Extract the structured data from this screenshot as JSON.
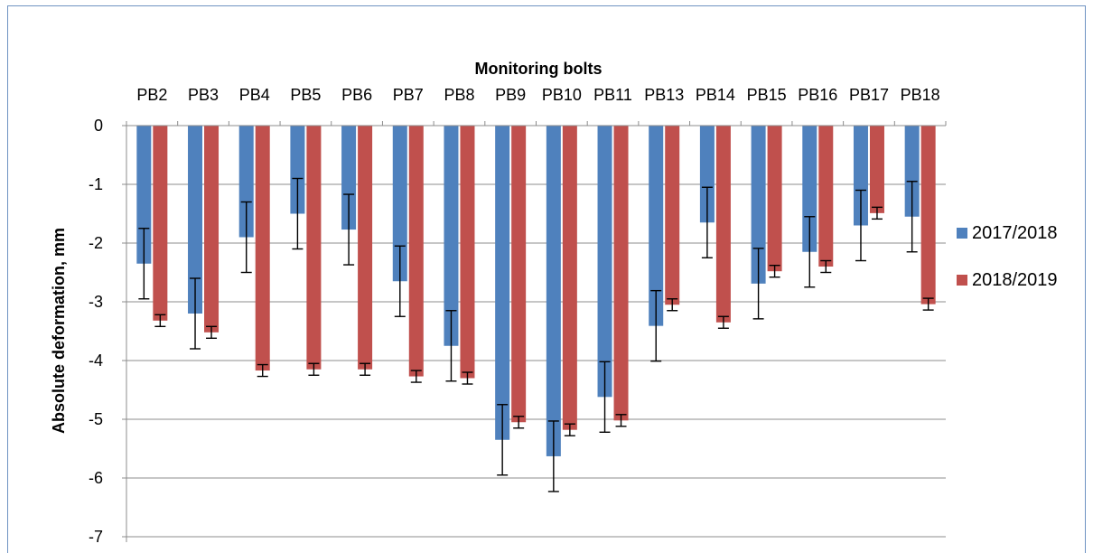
{
  "chart_data": {
    "type": "bar",
    "title": "Monitoring bolts",
    "ylabel": "Absolute deformation, mm",
    "xlabel": "",
    "ylim": [
      -7,
      0
    ],
    "yticks": [
      0,
      -1,
      -2,
      -3,
      -4,
      -5,
      -6,
      -7
    ],
    "x_axis_position": "top",
    "grid": true,
    "legend_position": "right",
    "categories": [
      "PB2",
      "PB3",
      "PB4",
      "PB5",
      "PB6",
      "PB7",
      "PB8",
      "PB9",
      "PB10",
      "PB11",
      "PB13",
      "PB14",
      "PB15",
      "PB16",
      "PB17",
      "PB18"
    ],
    "series": [
      {
        "name": "2017/2018",
        "color": "#4f81bd",
        "values": [
          -2.35,
          -3.2,
          -1.9,
          -1.5,
          -1.77,
          -2.65,
          -3.75,
          -5.35,
          -5.63,
          -4.62,
          -3.41,
          -1.65,
          -2.69,
          -2.15,
          -1.7,
          -1.55
        ],
        "error": [
          0.6,
          0.6,
          0.6,
          0.6,
          0.6,
          0.6,
          0.6,
          0.6,
          0.6,
          0.6,
          0.6,
          0.6,
          0.6,
          0.6,
          0.6,
          0.6
        ]
      },
      {
        "name": "2018/2019",
        "color": "#c0504d",
        "values": [
          -3.32,
          -3.52,
          -4.17,
          -4.15,
          -4.15,
          -4.27,
          -4.3,
          -5.05,
          -5.18,
          -5.02,
          -3.05,
          -3.35,
          -2.48,
          -2.4,
          -1.49,
          -3.04
        ],
        "error": [
          0.1,
          0.1,
          0.1,
          0.1,
          0.1,
          0.1,
          0.1,
          0.1,
          0.1,
          0.1,
          0.1,
          0.1,
          0.1,
          0.1,
          0.1,
          0.1
        ]
      }
    ]
  }
}
